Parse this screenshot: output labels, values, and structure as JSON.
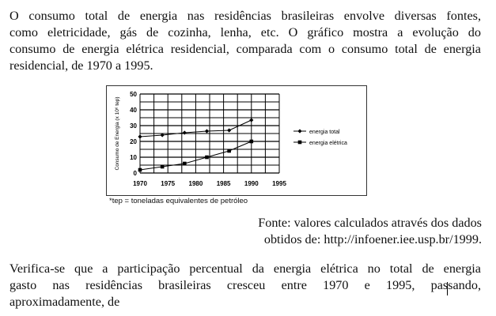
{
  "intro": {
    "lines": [
      "O consumo total de energia nas residências brasileiras envolve diversas fontes,",
      "como eletricidade, gás de cozinha, lenha, etc. O gráfico mostra a evolução do",
      "consumo de energia elétrica residencial, comparada com o consumo total de energia",
      "residencial, de 1970 a 1995."
    ]
  },
  "chart_data": {
    "type": "line",
    "ylabel": "Consumo de Energia (x 10⁶ tep)",
    "xlabel": "",
    "xlim": [
      1970,
      1995
    ],
    "ylim": [
      0,
      50
    ],
    "x_ticks": [
      "1970",
      "1975",
      "1980",
      "1985",
      "1990",
      "1995"
    ],
    "y_ticks": [
      "0",
      "10",
      "20",
      "30",
      "40",
      "50"
    ],
    "grid": true,
    "legend_position": "right",
    "series": [
      {
        "name": "energia total",
        "marker": "diamond",
        "x": [
          1970,
          1974,
          1978,
          1982,
          1986,
          1990
        ],
        "y": [
          23,
          24,
          25.5,
          26.5,
          27,
          33.5
        ]
      },
      {
        "name": "energia elétrica",
        "marker": "square",
        "x": [
          1970,
          1974,
          1978,
          1982,
          1986,
          1990
        ],
        "y": [
          2,
          4,
          6,
          10,
          14,
          20
        ]
      }
    ]
  },
  "footnote": "*tep = toneladas equivalentes de petróleo",
  "source": {
    "line1": "Fonte: valores calculados através dos dados",
    "line2": "obtidos de: http://infoener.iee.usp.br/1999."
  },
  "question": {
    "lines": [
      "Verifica-se que a participação percentual da energia elétrica no total de energia",
      "gasto nas residências brasileiras cresceu entre 1970 e 1995, passando,",
      "aproximadamente, de"
    ]
  }
}
